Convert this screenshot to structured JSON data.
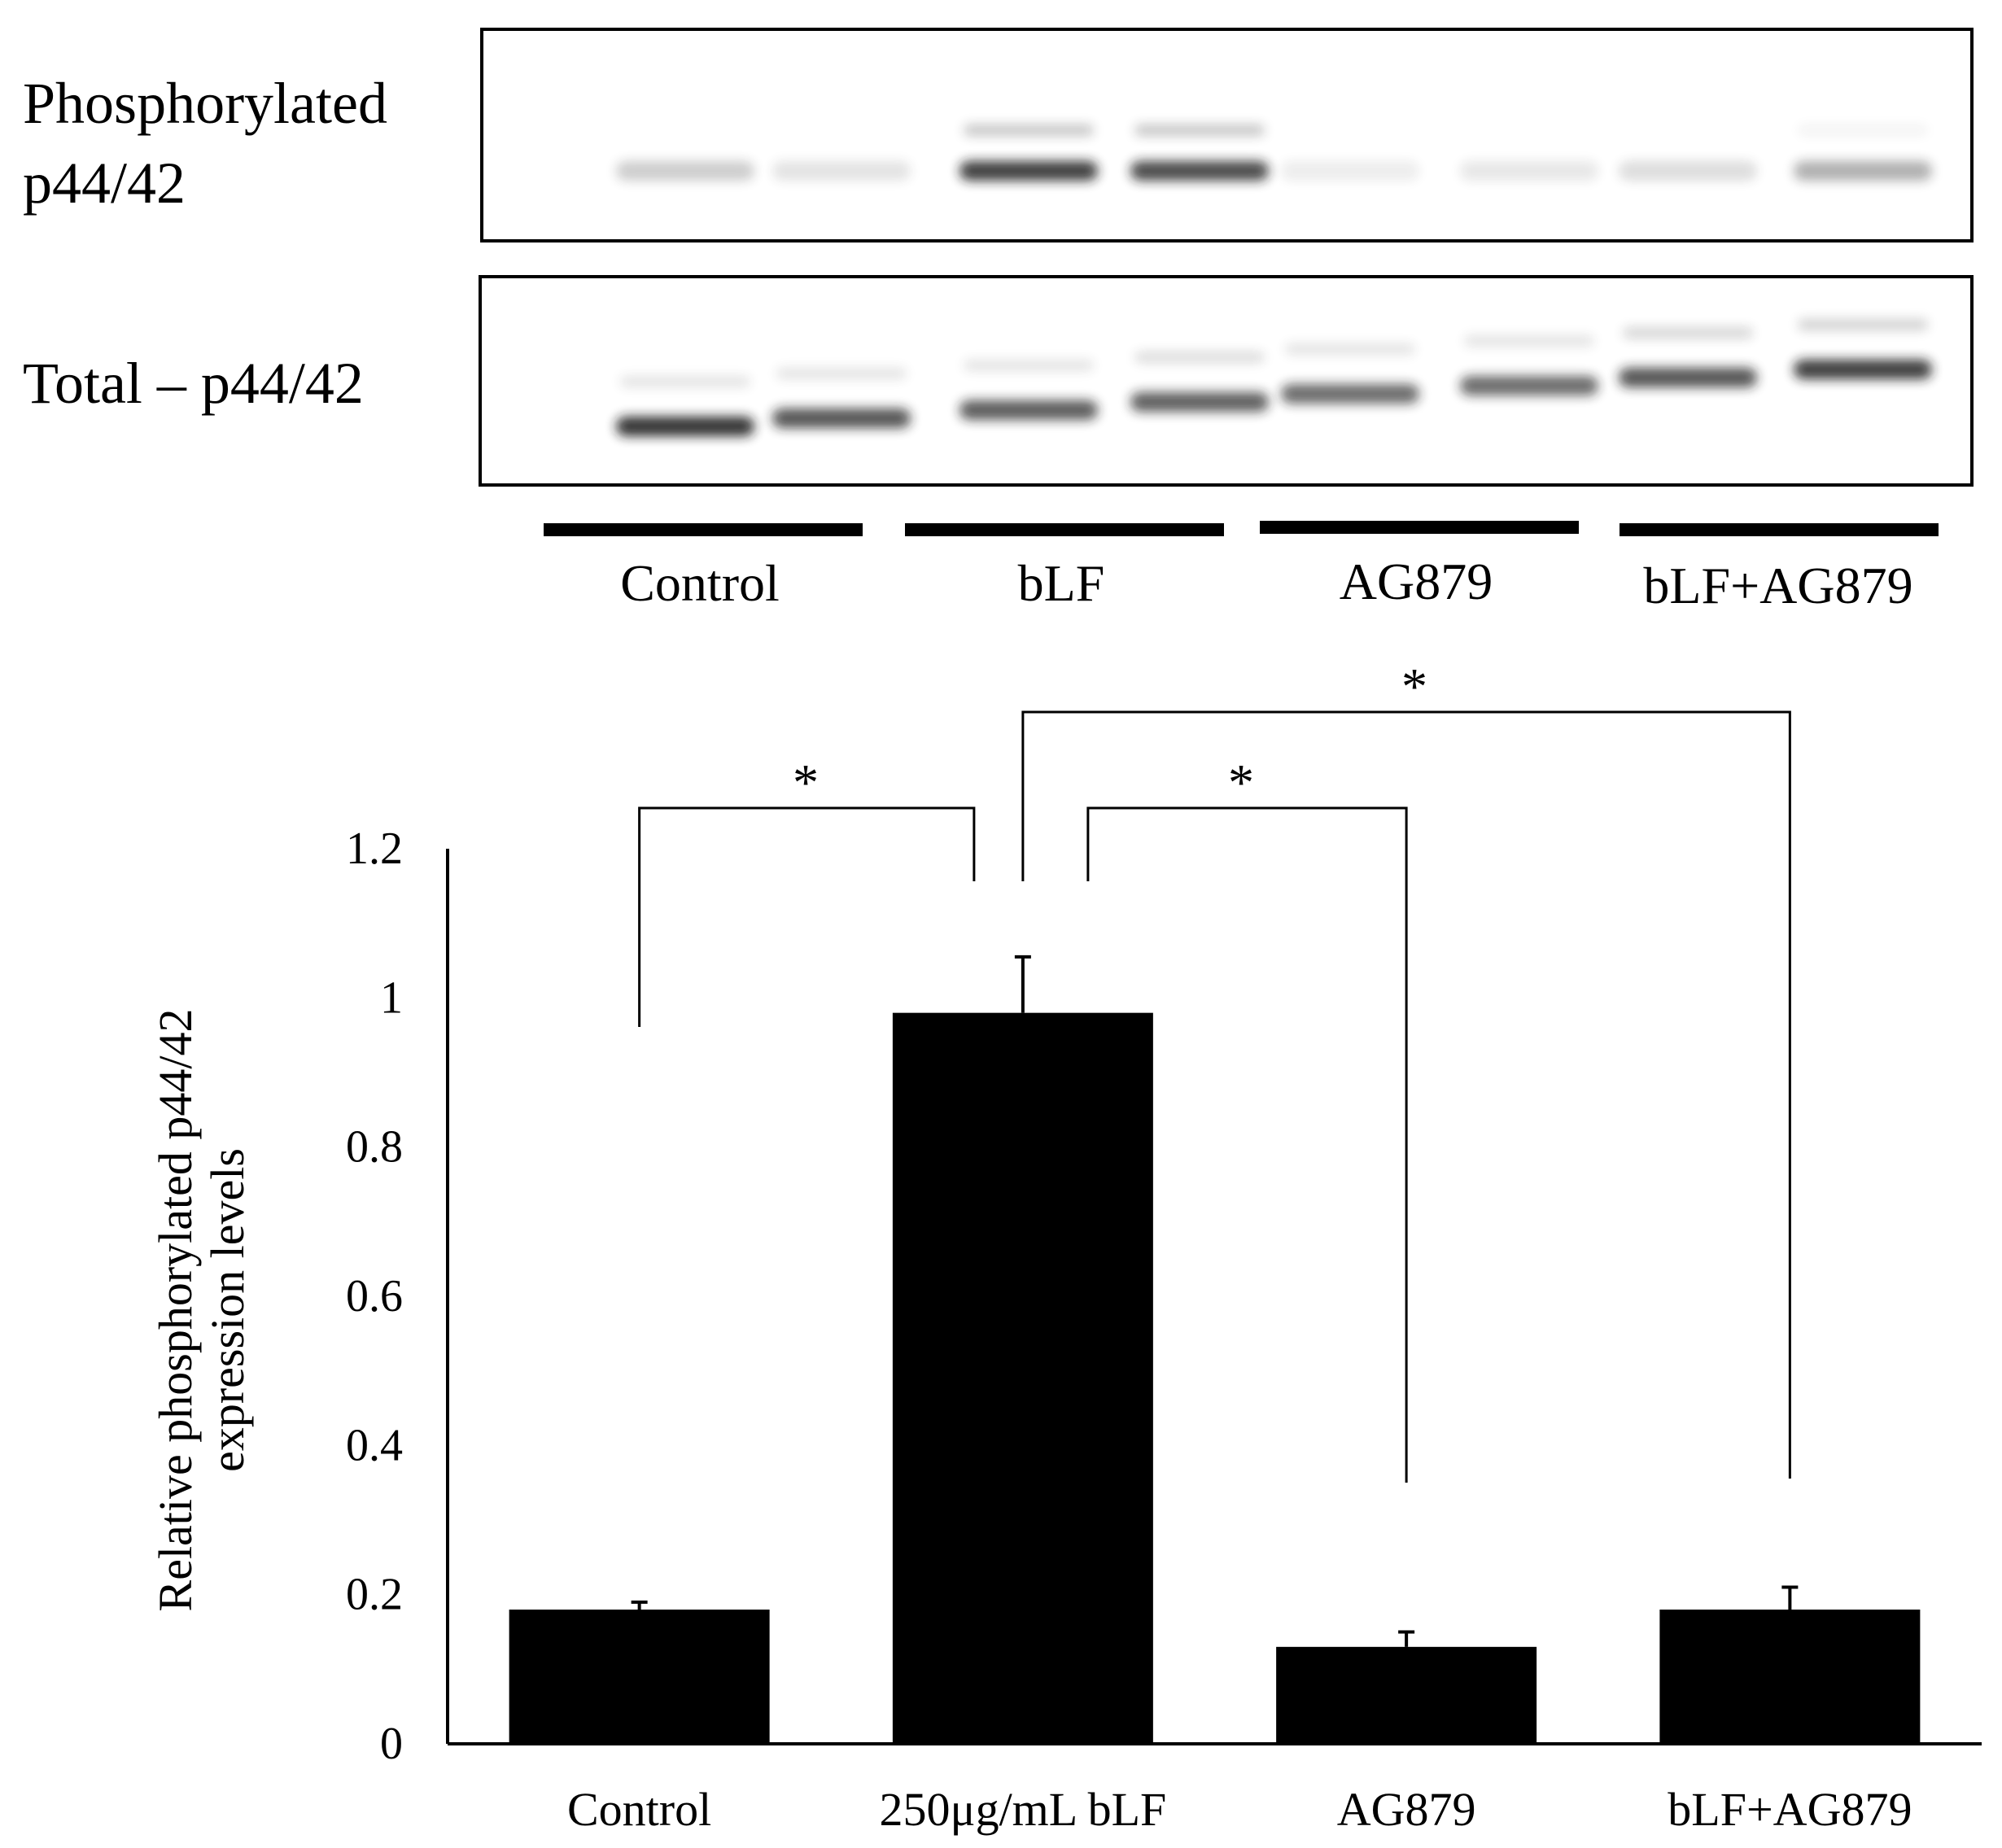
{
  "blot": {
    "row_labels": {
      "phospho_line1": "Phosphorylated",
      "phospho_line2": "p44/42",
      "total": "Total – p44/42"
    },
    "groups": [
      "Control",
      "bLF",
      "AG879",
      "bLF+AG879"
    ],
    "band_color": "#1a1a1a",
    "phospho_band_intensity": [
      0.22,
      0.12,
      0.85,
      0.8,
      0.08,
      0.1,
      0.15,
      0.35
    ],
    "phospho_upper_band_intensity": [
      0,
      0,
      0.25,
      0.25,
      0,
      0,
      0,
      0.05
    ],
    "total_band_intensity": [
      0.9,
      0.75,
      0.72,
      0.7,
      0.65,
      0.65,
      0.75,
      0.85
    ],
    "total_upper_band_intensity": [
      0.12,
      0.12,
      0.12,
      0.15,
      0.12,
      0.12,
      0.18,
      0.2
    ]
  },
  "chart_data": {
    "type": "bar",
    "categories": [
      "Control",
      "250μg/mL bLF",
      "AG879",
      "bLF+AG879"
    ],
    "values": [
      0.18,
      0.98,
      0.13,
      0.18
    ],
    "errors": [
      0.01,
      0.075,
      0.02,
      0.03
    ],
    "bar_color": "#000000",
    "ylabel_line1": "Relative phosphorylated p44/42",
    "ylabel_line2": "expression levels",
    "ylim": [
      0,
      1.2
    ],
    "yticks": [
      "0",
      "0.2",
      "0.4",
      "0.6",
      "0.8",
      "1",
      "1.2"
    ],
    "significance": [
      {
        "from": 0,
        "to": 1,
        "label": "*"
      },
      {
        "from": 1,
        "to": 2,
        "label": "*"
      },
      {
        "from": 1,
        "to": 3,
        "label": "*"
      }
    ],
    "grid": false
  }
}
